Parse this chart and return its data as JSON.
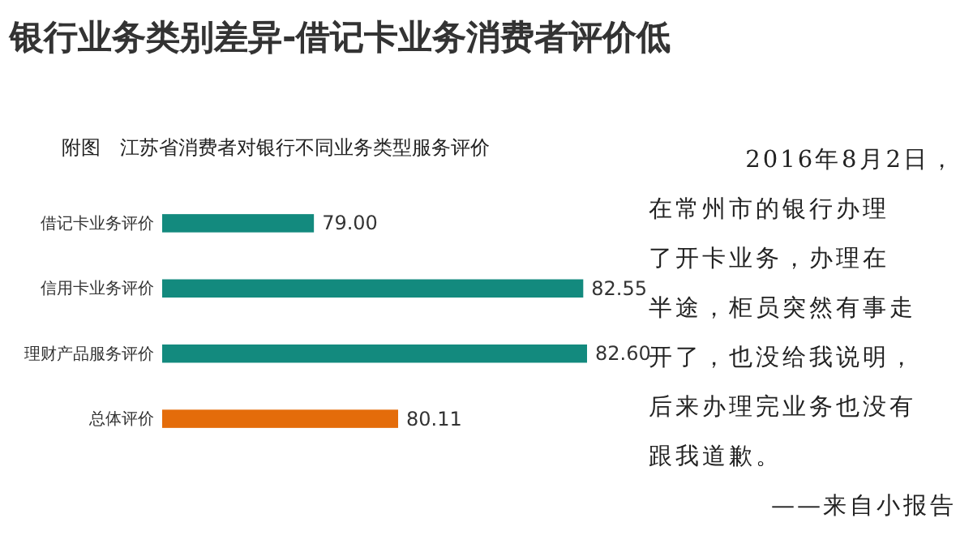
{
  "chart_data": {
    "type": "bar",
    "orientation": "horizontal",
    "title": "银行业务类别差异-借记卡业务消费者评价低",
    "subtitle": "附图　江苏省消费者对银行不同业务类型服务评价",
    "categories": [
      "借记卡业务评价",
      "信用卡业务评价",
      "理财产品服务评价",
      "总体评价"
    ],
    "values": [
      79.0,
      82.55,
      82.6,
      80.11
    ],
    "colors": [
      "#138a7e",
      "#138a7e",
      "#138a7e",
      "#e46c0a"
    ],
    "value_labels": [
      "79.00",
      "82.55",
      "82.60",
      "80.11"
    ],
    "xlim": [
      77,
      82.6
    ],
    "tick_labels": false,
    "annotations": [
      "2016年8月2日，",
      "在常州市的银行办理",
      "了开卡业务，办理在",
      "半途，柜员突然有事走",
      "开了，也没给我说明，",
      "后来办理完业务也没有",
      "跟我道歉。",
      "——来自小报告"
    ]
  }
}
